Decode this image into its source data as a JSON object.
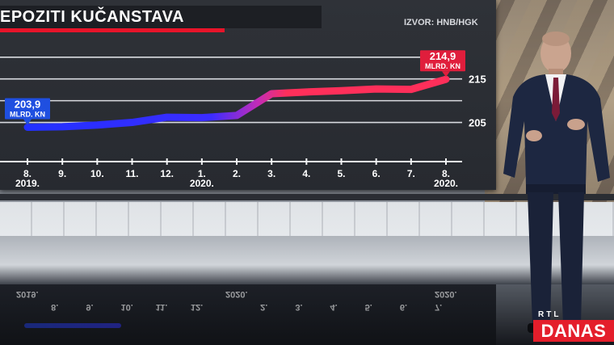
{
  "title": "EPOZITI KUČANSTAVA",
  "source": "IZVOR: HNB/HGK",
  "brand": {
    "top": "RTL",
    "bottom": "DANAS"
  },
  "colors": {
    "accent_red": "#e8142a",
    "series_start": "#2230ff",
    "series_end": "#ff2f5a",
    "callout_blue": "#1f4fe0",
    "callout_red": "#e01e3c"
  },
  "chart_data": {
    "type": "line",
    "title": "EPOZITI KUČANSTAVA",
    "x": [
      "8. 2019.",
      "9.",
      "10.",
      "11.",
      "12.",
      "1. 2020.",
      "2.",
      "3.",
      "4.",
      "5.",
      "6.",
      "7.",
      "8. 2020."
    ],
    "x_ticks": [
      {
        "line1": "8.",
        "line2": "2019."
      },
      {
        "line1": "9.",
        "line2": ""
      },
      {
        "line1": "10.",
        "line2": ""
      },
      {
        "line1": "11.",
        "line2": ""
      },
      {
        "line1": "12.",
        "line2": ""
      },
      {
        "line1": "1.",
        "line2": "2020."
      },
      {
        "line1": "2.",
        "line2": ""
      },
      {
        "line1": "3.",
        "line2": ""
      },
      {
        "line1": "4.",
        "line2": ""
      },
      {
        "line1": "5.",
        "line2": ""
      },
      {
        "line1": "6.",
        "line2": ""
      },
      {
        "line1": "7.",
        "line2": ""
      },
      {
        "line1": "8.",
        "line2": "2020."
      }
    ],
    "series": [
      {
        "values": [
          203.9,
          204.0,
          204.4,
          205.0,
          206.2,
          206.1,
          206.6,
          211.6,
          212.0,
          212.3,
          212.7,
          212.6,
          214.9
        ]
      }
    ],
    "y_ticks": [
      {
        "value": 215,
        "label": "215"
      },
      {
        "value": 205,
        "label": "205"
      }
    ],
    "ylim": [
      196,
      222
    ],
    "grid": true,
    "annotations": [
      {
        "index": 0,
        "value": "203,9",
        "unit": "MLRD. KN",
        "color": "blue"
      },
      {
        "index": 12,
        "value": "214,9",
        "unit": "MLRD. KN",
        "color": "red"
      }
    ]
  },
  "reflection_labels": [
    "2019.",
    "8.",
    "9.",
    "10.",
    "11.",
    "12.",
    "2020.",
    "2.",
    "3.",
    "4.",
    "5.",
    "6.",
    "7.",
    "2020."
  ]
}
